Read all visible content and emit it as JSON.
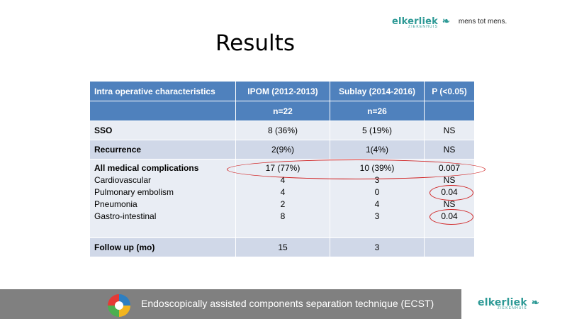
{
  "brand": {
    "name": "elkerliek",
    "sub": "ZIEKENHUIS",
    "mark_icon": "leaf-mark-icon",
    "tagline": "mens tot mens."
  },
  "title": "Results",
  "table": {
    "headers": [
      "Intra operative characteristics",
      "IPOM (2012-2013)",
      "Sublay (2014-2016)",
      "P (<0.05)"
    ],
    "subheader": [
      "",
      "n=22",
      "n=26",
      ""
    ],
    "rows": [
      {
        "label": "SSO",
        "ipom": "8 (36%)",
        "sublay": "5 (19%)",
        "p": "NS"
      },
      {
        "label": "Recurrence",
        "ipom": "2(9%)",
        "sublay": "1(4%)",
        "p": "NS"
      }
    ],
    "complications": {
      "label": "All medical complications",
      "ipom": "17 (77%)",
      "sublay": "10 (39%)",
      "p": "0.007",
      "items": [
        {
          "label": "Cardiovascular",
          "ipom": "4",
          "sublay": "3",
          "p": "NS"
        },
        {
          "label": "Pulmonary embolism",
          "ipom": "4",
          "sublay": "0",
          "p": "0.04"
        },
        {
          "label": "Pneumonia",
          "ipom": "2",
          "sublay": "4",
          "p": "NS"
        },
        {
          "label": "Gastro-intestinal",
          "ipom": "8",
          "sublay": "3",
          "p": "0.04"
        }
      ]
    },
    "followup": {
      "label": "Follow up (mo)",
      "ipom": "15",
      "sublay": "3",
      "p": ""
    }
  },
  "colors": {
    "header_bg": "#4f81bd",
    "band_light": "#e9edf4",
    "band_dark": "#d0d8e8",
    "highlight": "#d02020",
    "footer_bg": "#808080",
    "brand": "#2e9a96"
  },
  "footer": {
    "text": "Endoscopically assisted components separation technique (ECST)",
    "icon": "plan-do-check-act-cycle-icon"
  }
}
